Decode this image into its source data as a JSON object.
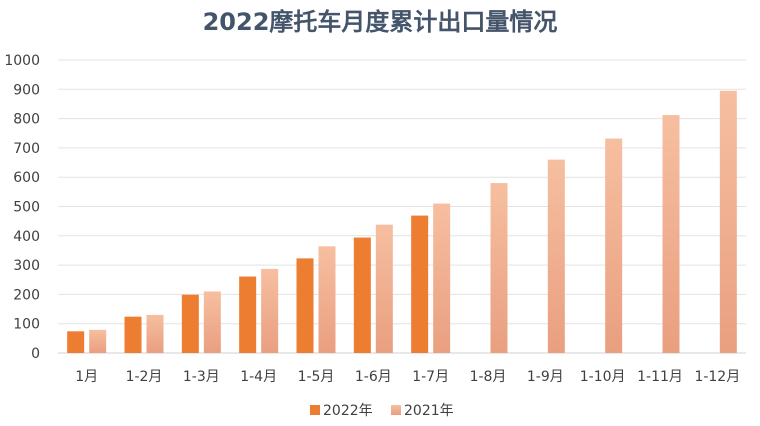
{
  "chart_data": {
    "type": "bar",
    "title": "2022摩托车月度累计出口量情况",
    "categories": [
      "1月",
      "1-2月",
      "1-3月",
      "1-4月",
      "1-5月",
      "1-6月",
      "1-7月",
      "1-8月",
      "1-9月",
      "1-10月",
      "1-11月",
      "1-12月"
    ],
    "series": [
      {
        "name": "2022年",
        "color": "#ed7d31",
        "values": [
          74,
          124,
          199,
          261,
          323,
          394,
          469,
          null,
          null,
          null,
          null,
          null
        ]
      },
      {
        "name": "2021年",
        "color": "#f4b183",
        "values": [
          79,
          130,
          210,
          287,
          364,
          438,
          510,
          580,
          660,
          732,
          812,
          895
        ]
      }
    ],
    "ylim": [
      0,
      1000
    ],
    "yticks": [
      0,
      100,
      200,
      300,
      400,
      500,
      600,
      700,
      800,
      900,
      1000
    ],
    "grid": true,
    "legend": "bottom",
    "xlabel": "",
    "ylabel": ""
  }
}
